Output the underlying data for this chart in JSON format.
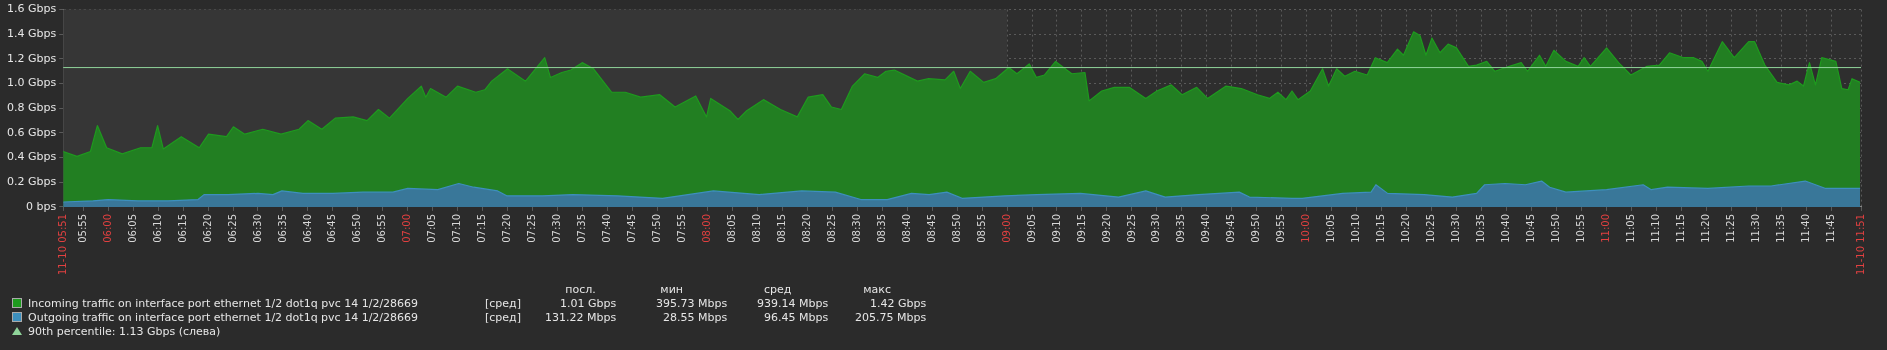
{
  "chart_data": {
    "type": "area",
    "xlim": [
      5.85,
      11.85
    ],
    "xticks": [
      {
        "value": 5.85,
        "label": "11-10 05:51"
      },
      {
        "value": 5.9167,
        "label": "05:55"
      },
      {
        "value": 6,
        "label": "06:00"
      },
      {
        "value": 6.0833,
        "label": "06:05"
      },
      {
        "value": 6.1667,
        "label": "06:10"
      },
      {
        "value": 6.25,
        "label": "06:15"
      },
      {
        "value": 6.3333,
        "label": "06:20"
      },
      {
        "value": 6.4167,
        "label": "06:25"
      },
      {
        "value": 6.5,
        "label": "06:30"
      },
      {
        "value": 6.5833,
        "label": "06:35"
      },
      {
        "value": 6.6667,
        "label": "06:40"
      },
      {
        "value": 6.75,
        "label": "06:45"
      },
      {
        "value": 6.8333,
        "label": "06:50"
      },
      {
        "value": 6.9167,
        "label": "06:55"
      },
      {
        "value": 7,
        "label": "07:00"
      },
      {
        "value": 7.0833,
        "label": "07:05"
      },
      {
        "value": 7.1667,
        "label": "07:10"
      },
      {
        "value": 7.25,
        "label": "07:15"
      },
      {
        "value": 7.3333,
        "label": "07:20"
      },
      {
        "value": 7.4167,
        "label": "07:25"
      },
      {
        "value": 7.5,
        "label": "07:30"
      },
      {
        "value": 7.5833,
        "label": "07:35"
      },
      {
        "value": 7.6667,
        "label": "07:40"
      },
      {
        "value": 7.75,
        "label": "07:45"
      },
      {
        "value": 7.8333,
        "label": "07:50"
      },
      {
        "value": 7.9167,
        "label": "07:55"
      },
      {
        "value": 8,
        "label": "08:00"
      },
      {
        "value": 8.0833,
        "label": "08:05"
      },
      {
        "value": 8.1667,
        "label": "08:10"
      },
      {
        "value": 8.25,
        "label": "08:15"
      },
      {
        "value": 8.3333,
        "label": "08:20"
      },
      {
        "value": 8.4167,
        "label": "08:25"
      },
      {
        "value": 8.5,
        "label": "08:30"
      },
      {
        "value": 8.5833,
        "label": "08:35"
      },
      {
        "value": 8.6667,
        "label": "08:40"
      },
      {
        "value": 8.75,
        "label": "08:45"
      },
      {
        "value": 8.8333,
        "label": "08:50"
      },
      {
        "value": 8.9167,
        "label": "08:55"
      },
      {
        "value": 9,
        "label": "09:00"
      },
      {
        "value": 9.0833,
        "label": "09:05"
      },
      {
        "value": 9.1667,
        "label": "09:10"
      },
      {
        "value": 9.25,
        "label": "09:15"
      },
      {
        "value": 9.3333,
        "label": "09:20"
      },
      {
        "value": 9.4167,
        "label": "09:25"
      },
      {
        "value": 9.5,
        "label": "09:30"
      },
      {
        "value": 9.5833,
        "label": "09:35"
      },
      {
        "value": 9.6667,
        "label": "09:40"
      },
      {
        "value": 9.75,
        "label": "09:45"
      },
      {
        "value": 9.8333,
        "label": "09:50"
      },
      {
        "value": 9.9167,
        "label": "09:55"
      },
      {
        "value": 10,
        "label": "10:00"
      },
      {
        "value": 10.0833,
        "label": "10:05"
      },
      {
        "value": 10.1667,
        "label": "10:10"
      },
      {
        "value": 10.25,
        "label": "10:15"
      },
      {
        "value": 10.3333,
        "label": "10:20"
      },
      {
        "value": 10.4167,
        "label": "10:25"
      },
      {
        "value": 10.5,
        "label": "10:30"
      },
      {
        "value": 10.5833,
        "label": "10:35"
      },
      {
        "value": 10.6667,
        "label": "10:40"
      },
      {
        "value": 10.75,
        "label": "10:45"
      },
      {
        "value": 10.8333,
        "label": "10:50"
      },
      {
        "value": 10.9167,
        "label": "10:55"
      },
      {
        "value": 11,
        "label": "11:00"
      },
      {
        "value": 11.0833,
        "label": "11:05"
      },
      {
        "value": 11.1667,
        "label": "11:10"
      },
      {
        "value": 11.25,
        "label": "11:15"
      },
      {
        "value": 11.3333,
        "label": "11:20"
      },
      {
        "value": 11.4167,
        "label": "11:25"
      },
      {
        "value": 11.5,
        "label": "11:30"
      },
      {
        "value": 11.5833,
        "label": "11:35"
      },
      {
        "value": 11.6667,
        "label": "11:40"
      },
      {
        "value": 11.75,
        "label": "11:45"
      },
      {
        "value": 11.85,
        "label": "11-10 11:51"
      }
    ],
    "ylim": [
      0,
      1.6
    ],
    "yticks": [
      {
        "value": 0,
        "label": "0 bps"
      },
      {
        "value": 0.2,
        "label": "0.2 Gbps"
      },
      {
        "value": 0.4,
        "label": "0.4 Gbps"
      },
      {
        "value": 0.6,
        "label": "0.6 Gbps"
      },
      {
        "value": 0.8,
        "label": "0.8 Gbps"
      },
      {
        "value": 1.0,
        "label": "1.0 Gbps"
      },
      {
        "value": 1.2,
        "label": "1.2 Gbps"
      },
      {
        "value": 1.4,
        "label": "1.4 Gbps"
      },
      {
        "value": 1.6,
        "label": "1.6 Gbps"
      }
    ],
    "grid": true,
    "legend": "bottom",
    "bands": [
      {
        "axis": "x",
        "from": 5.85,
        "to": 9.0,
        "color": "#363636"
      }
    ],
    "ref_lines": [
      {
        "axis": "y",
        "value": 1.13,
        "label": "90th percentile: 1.13 Gbps (слева)",
        "color": "#8fd49a"
      }
    ],
    "annotations": [
      "посл.",
      "мин",
      "сред",
      "макс",
      "[сред]",
      "1.01 Gbps",
      "395.73 Mbps",
      "939.14 Mbps",
      "1.42 Gbps",
      "[сред]",
      "131.22 Mbps",
      "28.55 Mbps",
      "96.45 Mbps",
      "205.75 Mbps"
    ],
    "series": [
      {
        "name": "Incoming traffic on interface port ethernet 1/2 dot1q pvc 14 1/2/28669",
        "color": "#1e9a1e",
        "x": [
          5.85,
          5.896,
          5.941,
          5.964,
          5.995,
          6.047,
          6.108,
          6.146,
          6.165,
          6.184,
          6.244,
          6.304,
          6.335,
          6.395,
          6.418,
          6.456,
          6.516,
          6.577,
          6.637,
          6.667,
          6.713,
          6.758,
          6.818,
          6.864,
          6.902,
          6.939,
          7.0,
          7.045,
          7.06,
          7.076,
          7.128,
          7.166,
          7.227,
          7.257,
          7.28,
          7.333,
          7.393,
          7.457,
          7.476,
          7.514,
          7.544,
          7.582,
          7.62,
          7.68,
          7.726,
          7.777,
          7.841,
          7.892,
          7.961,
          7.997,
          8.011,
          8.075,
          8.102,
          8.131,
          8.187,
          8.244,
          8.3,
          8.336,
          8.385,
          8.414,
          8.447,
          8.484,
          8.525,
          8.568,
          8.596,
          8.624,
          8.701,
          8.738,
          8.793,
          8.822,
          8.844,
          8.877,
          8.922,
          8.962,
          9.006,
          9.033,
          9.074,
          9.098,
          9.125,
          9.162,
          9.216,
          9.26,
          9.274,
          9.316,
          9.358,
          9.408,
          9.463,
          9.5,
          9.548,
          9.584,
          9.633,
          9.669,
          9.731,
          9.782,
          9.836,
          9.876,
          9.904,
          9.931,
          9.951,
          9.971,
          10.012,
          10.053,
          10.073,
          10.1,
          10.127,
          10.161,
          10.202,
          10.229,
          10.269,
          10.303,
          10.323,
          10.357,
          10.378,
          10.398,
          10.418,
          10.445,
          10.472,
          10.5,
          10.54,
          10.567,
          10.601,
          10.628,
          10.676,
          10.716,
          10.737,
          10.777,
          10.798,
          10.825,
          10.865,
          10.906,
          10.926,
          10.947,
          11.001,
          11.041,
          11.082,
          11.136,
          11.177,
          11.211,
          11.258,
          11.292,
          11.319,
          11.339,
          11.387,
          11.427,
          11.475,
          11.495,
          11.529,
          11.57,
          11.61,
          11.637,
          11.658,
          11.678,
          11.698,
          11.719,
          11.766,
          11.786,
          11.807,
          11.82,
          11.847
        ],
        "values": [
          0.45,
          0.41,
          0.45,
          0.66,
          0.48,
          0.43,
          0.48,
          0.48,
          0.66,
          0.47,
          0.57,
          0.48,
          0.59,
          0.57,
          0.65,
          0.59,
          0.63,
          0.59,
          0.63,
          0.7,
          0.63,
          0.72,
          0.73,
          0.7,
          0.79,
          0.72,
          0.88,
          0.98,
          0.89,
          0.96,
          0.89,
          0.98,
          0.93,
          0.95,
          1.02,
          1.12,
          1.02,
          1.21,
          1.05,
          1.09,
          1.11,
          1.17,
          1.12,
          0.93,
          0.93,
          0.89,
          0.91,
          0.81,
          0.9,
          0.73,
          0.88,
          0.78,
          0.71,
          0.78,
          0.87,
          0.79,
          0.73,
          0.89,
          0.91,
          0.81,
          0.79,
          0.98,
          1.08,
          1.05,
          1.1,
          1.11,
          1.02,
          1.04,
          1.03,
          1.1,
          0.96,
          1.1,
          1.01,
          1.04,
          1.13,
          1.08,
          1.16,
          1.05,
          1.07,
          1.18,
          1.08,
          1.09,
          0.86,
          0.94,
          0.97,
          0.97,
          0.88,
          0.94,
          0.99,
          0.91,
          0.97,
          0.88,
          0.98,
          0.96,
          0.91,
          0.88,
          0.93,
          0.87,
          0.94,
          0.87,
          0.94,
          1.12,
          0.98,
          1.12,
          1.06,
          1.1,
          1.07,
          1.21,
          1.17,
          1.28,
          1.23,
          1.42,
          1.39,
          1.23,
          1.37,
          1.25,
          1.32,
          1.29,
          1.14,
          1.15,
          1.18,
          1.1,
          1.14,
          1.17,
          1.1,
          1.23,
          1.14,
          1.27,
          1.18,
          1.14,
          1.21,
          1.14,
          1.29,
          1.17,
          1.07,
          1.14,
          1.15,
          1.25,
          1.21,
          1.21,
          1.18,
          1.1,
          1.34,
          1.21,
          1.34,
          1.34,
          1.15,
          1.01,
          0.99,
          1.02,
          0.98,
          1.17,
          0.99,
          1.21,
          1.18,
          0.96,
          0.95,
          1.04,
          1.01
        ]
      },
      {
        "name": "Outgoing traffic on interface port ethernet 1/2 dot1q pvc 14 1/2/28669",
        "color": "#3d8fbd",
        "x": [
          5.85,
          5.95,
          6.0,
          6.1,
          6.2,
          6.3,
          6.32,
          6.4,
          6.5,
          6.55,
          6.58,
          6.65,
          6.75,
          6.85,
          6.95,
          7.0,
          7.1,
          7.17,
          7.22,
          7.3,
          7.33,
          7.45,
          7.55,
          7.7,
          7.85,
          8.02,
          8.173,
          8.315,
          8.427,
          8.512,
          8.6,
          8.681,
          8.74,
          8.799,
          8.85,
          8.993,
          9.1,
          9.245,
          9.372,
          9.463,
          9.528,
          9.639,
          9.775,
          9.809,
          9.951,
          9.985,
          10.12,
          10.215,
          10.231,
          10.27,
          10.392,
          10.486,
          10.567,
          10.594,
          10.662,
          10.73,
          10.784,
          10.811,
          10.865,
          11.001,
          11.123,
          11.15,
          11.204,
          11.339,
          11.475,
          11.55,
          11.664,
          11.732,
          11.847
        ],
        "values": [
          0.04,
          0.05,
          0.06,
          0.05,
          0.05,
          0.06,
          0.1,
          0.1,
          0.11,
          0.1,
          0.13,
          0.11,
          0.11,
          0.12,
          0.12,
          0.15,
          0.14,
          0.19,
          0.16,
          0.13,
          0.09,
          0.09,
          0.1,
          0.09,
          0.07,
          0.13,
          0.1,
          0.13,
          0.12,
          0.06,
          0.06,
          0.11,
          0.1,
          0.12,
          0.07,
          0.09,
          0.1,
          0.11,
          0.08,
          0.13,
          0.08,
          0.1,
          0.12,
          0.08,
          0.07,
          0.07,
          0.11,
          0.12,
          0.18,
          0.11,
          0.1,
          0.08,
          0.11,
          0.18,
          0.19,
          0.18,
          0.21,
          0.16,
          0.12,
          0.14,
          0.18,
          0.14,
          0.16,
          0.15,
          0.17,
          0.17,
          0.21,
          0.15,
          0.15
        ]
      }
    ]
  }
}
